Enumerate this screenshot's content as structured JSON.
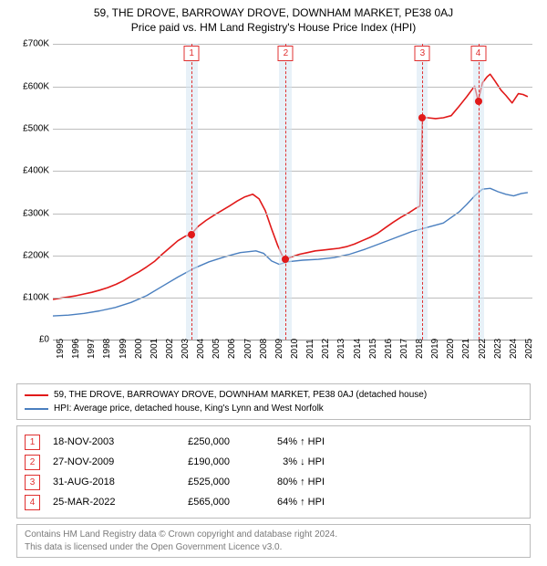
{
  "title1": "59, THE DROVE, BARROWAY DROVE, DOWNHAM MARKET, PE38 0AJ",
  "title2": "Price paid vs. HM Land Registry's House Price Index (HPI)",
  "chart": {
    "type": "line",
    "background": "#ffffff",
    "grid_color": "#bdbdbd",
    "axis_color": "#999999",
    "xlim": [
      1995,
      2025.7
    ],
    "ylim": [
      0,
      700000
    ],
    "yticks": [
      0,
      100000,
      200000,
      300000,
      400000,
      500000,
      600000,
      700000
    ],
    "ytick_labels": [
      "£0",
      "£100K",
      "£200K",
      "£300K",
      "£400K",
      "£500K",
      "£600K",
      "£700K"
    ],
    "ytick_fontsize": 10,
    "xticks": [
      1995,
      1996,
      1997,
      1998,
      1999,
      2000,
      2001,
      2002,
      2003,
      2004,
      2005,
      2006,
      2007,
      2008,
      2009,
      2010,
      2011,
      2012,
      2013,
      2014,
      2015,
      2016,
      2017,
      2018,
      2019,
      2020,
      2021,
      2022,
      2023,
      2024,
      2025
    ],
    "xtick_fontsize": 10,
    "marker_band_color": "#d6e5f3",
    "marker_band_opacity": 0.55,
    "marker_line_color": "#e03030",
    "marker_box_border": "#e03030",
    "markers": [
      {
        "n": "1",
        "x": 2003.88,
        "band": [
          2003.5,
          2004.3
        ]
      },
      {
        "n": "2",
        "x": 2009.91,
        "band": [
          2009.5,
          2010.3
        ]
      },
      {
        "n": "3",
        "x": 2018.66,
        "band": [
          2018.3,
          2019.0
        ]
      },
      {
        "n": "4",
        "x": 2022.23,
        "band": [
          2021.9,
          2022.6
        ]
      }
    ],
    "series": [
      {
        "name": "price-paid",
        "label": "59, THE DROVE, BARROWAY DROVE, DOWNHAM MARKET, PE38 0AJ (detached house)",
        "color": "#e11919",
        "width": 1.6,
        "data": [
          [
            1995.0,
            95000
          ],
          [
            1995.5,
            98000
          ],
          [
            1996.0,
            101000
          ],
          [
            1996.5,
            104000
          ],
          [
            1997.0,
            108000
          ],
          [
            1997.5,
            112000
          ],
          [
            1998.0,
            117000
          ],
          [
            1998.5,
            123000
          ],
          [
            1999.0,
            130000
          ],
          [
            1999.5,
            139000
          ],
          [
            2000.0,
            150000
          ],
          [
            2000.5,
            160000
          ],
          [
            2001.0,
            172000
          ],
          [
            2001.5,
            185000
          ],
          [
            2002.0,
            202000
          ],
          [
            2002.5,
            218000
          ],
          [
            2003.0,
            234000
          ],
          [
            2003.5,
            245000
          ],
          [
            2003.88,
            250000
          ],
          [
            2004.3,
            268000
          ],
          [
            2004.8,
            282000
          ],
          [
            2005.3,
            294000
          ],
          [
            2005.8,
            305000
          ],
          [
            2006.3,
            316000
          ],
          [
            2006.8,
            328000
          ],
          [
            2007.3,
            338000
          ],
          [
            2007.8,
            344000
          ],
          [
            2008.2,
            333000
          ],
          [
            2008.6,
            305000
          ],
          [
            2009.0,
            262000
          ],
          [
            2009.4,
            222000
          ],
          [
            2009.7,
            198000
          ],
          [
            2009.91,
            190000
          ],
          [
            2010.3,
            196000
          ],
          [
            2010.8,
            202000
          ],
          [
            2011.3,
            206000
          ],
          [
            2011.8,
            210000
          ],
          [
            2012.3,
            212000
          ],
          [
            2012.8,
            214000
          ],
          [
            2013.3,
            216000
          ],
          [
            2013.8,
            220000
          ],
          [
            2014.3,
            226000
          ],
          [
            2014.8,
            234000
          ],
          [
            2015.3,
            242000
          ],
          [
            2015.8,
            252000
          ],
          [
            2016.3,
            265000
          ],
          [
            2016.8,
            278000
          ],
          [
            2017.3,
            290000
          ],
          [
            2017.8,
            300000
          ],
          [
            2018.2,
            310000
          ],
          [
            2018.5,
            316000
          ],
          [
            2018.66,
            525000
          ],
          [
            2019.0,
            525000
          ],
          [
            2019.5,
            523000
          ],
          [
            2020.0,
            525000
          ],
          [
            2020.5,
            530000
          ],
          [
            2021.0,
            552000
          ],
          [
            2021.5,
            575000
          ],
          [
            2022.0,
            600000
          ],
          [
            2022.23,
            565000
          ],
          [
            2022.5,
            608000
          ],
          [
            2022.8,
            622000
          ],
          [
            2023.0,
            628000
          ],
          [
            2023.3,
            612000
          ],
          [
            2023.7,
            590000
          ],
          [
            2024.0,
            578000
          ],
          [
            2024.4,
            560000
          ],
          [
            2024.8,
            582000
          ],
          [
            2025.1,
            580000
          ],
          [
            2025.4,
            575000
          ]
        ]
      },
      {
        "name": "hpi",
        "label": "HPI: Average price, detached house, King's Lynn and West Norfolk",
        "color": "#4a7fbf",
        "width": 1.4,
        "data": [
          [
            1995.0,
            56000
          ],
          [
            1996.0,
            58000
          ],
          [
            1997.0,
            62000
          ],
          [
            1998.0,
            68000
          ],
          [
            1999.0,
            76000
          ],
          [
            2000.0,
            88000
          ],
          [
            2001.0,
            104000
          ],
          [
            2002.0,
            126000
          ],
          [
            2003.0,
            148000
          ],
          [
            2004.0,
            168000
          ],
          [
            2005.0,
            184000
          ],
          [
            2006.0,
            196000
          ],
          [
            2007.0,
            206000
          ],
          [
            2008.0,
            210000
          ],
          [
            2008.5,
            204000
          ],
          [
            2009.0,
            186000
          ],
          [
            2009.5,
            178000
          ],
          [
            2010.0,
            184000
          ],
          [
            2011.0,
            188000
          ],
          [
            2012.0,
            190000
          ],
          [
            2013.0,
            194000
          ],
          [
            2014.0,
            202000
          ],
          [
            2015.0,
            214000
          ],
          [
            2016.0,
            228000
          ],
          [
            2017.0,
            242000
          ],
          [
            2018.0,
            256000
          ],
          [
            2019.0,
            266000
          ],
          [
            2020.0,
            276000
          ],
          [
            2021.0,
            302000
          ],
          [
            2021.5,
            320000
          ],
          [
            2022.0,
            340000
          ],
          [
            2022.5,
            356000
          ],
          [
            2023.0,
            358000
          ],
          [
            2023.5,
            350000
          ],
          [
            2024.0,
            344000
          ],
          [
            2024.5,
            340000
          ],
          [
            2025.0,
            346000
          ],
          [
            2025.4,
            348000
          ]
        ]
      }
    ],
    "point_markers": {
      "color": "#e11919",
      "radius": 4,
      "points": [
        {
          "x": 2003.88,
          "y": 250000
        },
        {
          "x": 2009.91,
          "y": 190000
        },
        {
          "x": 2018.66,
          "y": 525000
        },
        {
          "x": 2022.23,
          "y": 565000
        }
      ]
    }
  },
  "legend": {
    "border": "#bbbbbb",
    "items": [
      {
        "color": "#e11919",
        "label_path": "chart.series.0.label"
      },
      {
        "color": "#4a7fbf",
        "label_path": "chart.series.1.label"
      }
    ]
  },
  "events": {
    "label_hpi": "HPI",
    "rows": [
      {
        "n": "1",
        "date": "18-NOV-2003",
        "price": "£250,000",
        "pct": "54% ↑"
      },
      {
        "n": "2",
        "date": "27-NOV-2009",
        "price": "£190,000",
        "pct": "3% ↓"
      },
      {
        "n": "3",
        "date": "31-AUG-2018",
        "price": "£525,000",
        "pct": "80% ↑"
      },
      {
        "n": "4",
        "date": "25-MAR-2022",
        "price": "£565,000",
        "pct": "64% ↑"
      }
    ],
    "num_border": "#e03030"
  },
  "footer": {
    "line1": "Contains HM Land Registry data © Crown copyright and database right 2024.",
    "line2": "This data is licensed under the Open Government Licence v3.0."
  }
}
